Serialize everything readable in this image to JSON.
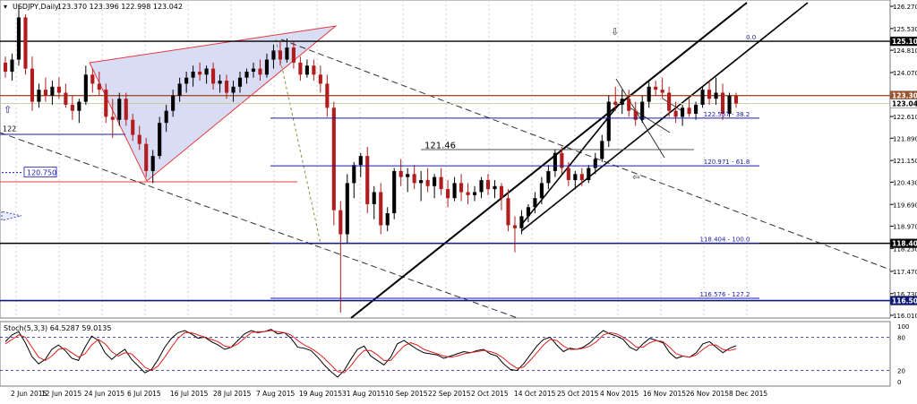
{
  "header": {
    "symbol": "USDJPY,Daily",
    "ohlc": "123.370 123.396 122.998 123.042"
  },
  "stoch_header": "Stoch(5,3,3) 64.5287 59.0135",
  "chart_data": [
    {
      "type": "candlestick",
      "title": "USDJPY,Daily",
      "ylim": [
        116.01,
        126.27
      ],
      "y_ticks": [
        "126.270",
        "125.530",
        "124.810",
        "124.070",
        "123.350",
        "122.610",
        "121.890",
        "121.150",
        "120.430",
        "119.690",
        "118.970",
        "118.230",
        "117.470",
        "116.730",
        "116.010"
      ],
      "x_ticks": [
        "2 Jun 2015",
        "12 Jun 2015",
        "24 Jun 2015",
        "6 Jul 2015",
        "16 Jul 2015",
        "28 Jul 2015",
        "7 Aug 2015",
        "19 Aug 2015",
        "31 Aug 2015",
        "10 Sep 2015",
        "22 Sep 2015",
        "2 Oct 2015",
        "14 Oct 2015",
        "25 Oct 2015",
        "4 Nov 2015",
        "16 Nov 2015",
        "26 Nov 2015",
        "8 Dec 2015"
      ],
      "colors": {
        "bull": "#000000",
        "bear": "#b11c1c",
        "wedge_fill": "#d9dcf5",
        "wedge_edge": "#e8393d",
        "fib": "#1a1aa8"
      },
      "price_markers": [
        {
          "value": 125.108,
          "label": "125.108",
          "style": "black"
        },
        {
          "value": 123.305,
          "label": "123.305",
          "style": "brown"
        },
        {
          "value": 123.042,
          "label": "123.042",
          "style": "white"
        },
        {
          "value": 118.4,
          "label": "118.400",
          "style": "black"
        },
        {
          "value": 116.5,
          "label": "116.500",
          "style": "navy"
        }
      ],
      "fib_levels": [
        {
          "label": "0.0",
          "value": 125.108
        },
        {
          "label": "122.557 - 38.2",
          "value": 122.557
        },
        {
          "label": "120.971 - 61.8",
          "value": 120.971
        },
        {
          "label": "118.404 - 100.0",
          "value": 118.404
        },
        {
          "label": "116.576 - 127.2",
          "value": 116.576
        }
      ],
      "annotations": [
        {
          "text": "121.46",
          "value": 121.46
        },
        {
          "text": "120.750",
          "value": 120.75
        },
        {
          "text": "122",
          "value": 122.0
        }
      ],
      "ohlc": [
        [
          124.4,
          124.6,
          123.9,
          124.1
        ],
        [
          124.1,
          124.7,
          123.8,
          124.5
        ],
        [
          124.5,
          126.3,
          124.3,
          125.9
        ],
        [
          125.9,
          126.0,
          124.0,
          124.2
        ],
        [
          124.2,
          124.6,
          122.8,
          123.1
        ],
        [
          123.1,
          123.7,
          122.9,
          123.5
        ],
        [
          123.5,
          123.9,
          123.1,
          123.3
        ],
        [
          123.3,
          123.8,
          123.0,
          123.6
        ],
        [
          123.6,
          123.9,
          123.2,
          123.4
        ],
        [
          123.4,
          123.7,
          122.9,
          123.0
        ],
        [
          123.0,
          123.3,
          122.5,
          122.8
        ],
        [
          122.8,
          123.2,
          122.4,
          123.1
        ],
        [
          123.1,
          124.3,
          123.0,
          124.0
        ],
        [
          124.0,
          124.2,
          123.4,
          123.7
        ],
        [
          123.7,
          124.1,
          123.3,
          123.5
        ],
        [
          123.5,
          123.7,
          122.4,
          122.6
        ],
        [
          122.6,
          123.2,
          121.9,
          122.5
        ],
        [
          122.5,
          123.4,
          122.3,
          123.2
        ],
        [
          123.2,
          123.4,
          122.3,
          122.5
        ],
        [
          122.5,
          122.7,
          121.8,
          122.0
        ],
        [
          122.0,
          122.3,
          121.5,
          121.7
        ],
        [
          121.7,
          121.9,
          120.6,
          120.8
        ],
        [
          120.8,
          121.5,
          120.4,
          121.3
        ],
        [
          121.3,
          122.6,
          121.2,
          122.4
        ],
        [
          122.4,
          123.0,
          122.1,
          122.8
        ],
        [
          122.8,
          123.5,
          122.6,
          123.3
        ],
        [
          123.3,
          123.9,
          123.1,
          123.7
        ],
        [
          123.7,
          124.1,
          123.4,
          123.9
        ],
        [
          123.9,
          124.3,
          123.6,
          124.1
        ],
        [
          124.1,
          124.4,
          123.8,
          124.0
        ],
        [
          124.0,
          124.3,
          123.7,
          124.2
        ],
        [
          124.2,
          124.4,
          123.5,
          123.7
        ],
        [
          123.7,
          124.0,
          123.4,
          123.8
        ],
        [
          123.8,
          124.0,
          123.2,
          123.4
        ],
        [
          123.4,
          123.8,
          123.1,
          123.6
        ],
        [
          123.6,
          124.1,
          123.4,
          123.9
        ],
        [
          123.9,
          124.2,
          123.7,
          124.1
        ],
        [
          124.1,
          124.4,
          123.9,
          124.2
        ],
        [
          124.2,
          124.5,
          123.8,
          124.0
        ],
        [
          124.0,
          124.7,
          123.9,
          124.5
        ],
        [
          124.5,
          125.0,
          124.2,
          124.8
        ],
        [
          124.8,
          125.1,
          124.3,
          124.5
        ],
        [
          124.5,
          125.2,
          124.4,
          124.9
        ],
        [
          124.9,
          125.1,
          124.2,
          124.4
        ],
        [
          124.4,
          124.6,
          123.8,
          124.0
        ],
        [
          124.0,
          124.5,
          123.9,
          124.3
        ],
        [
          124.3,
          124.5,
          123.8,
          124.0
        ],
        [
          124.0,
          124.3,
          123.4,
          123.7
        ],
        [
          123.7,
          124.0,
          122.6,
          122.9
        ],
        [
          122.9,
          123.1,
          119.0,
          119.5
        ],
        [
          119.5,
          119.8,
          116.1,
          118.7
        ],
        [
          118.7,
          120.7,
          118.4,
          120.4
        ],
        [
          120.4,
          121.1,
          119.9,
          121.0
        ],
        [
          121.0,
          121.4,
          120.6,
          121.3
        ],
        [
          121.3,
          121.6,
          119.4,
          119.7
        ],
        [
          119.7,
          120.3,
          119.2,
          120.1
        ],
        [
          120.1,
          120.4,
          118.7,
          119.0
        ],
        [
          119.0,
          119.6,
          118.8,
          119.4
        ],
        [
          119.4,
          120.9,
          119.2,
          120.8
        ],
        [
          120.8,
          121.2,
          120.3,
          120.6
        ],
        [
          120.6,
          120.9,
          120.1,
          120.7
        ],
        [
          120.7,
          121.0,
          120.2,
          120.4
        ],
        [
          120.4,
          120.8,
          119.8,
          120.5
        ],
        [
          120.5,
          120.9,
          120.1,
          120.3
        ],
        [
          120.3,
          120.7,
          119.9,
          120.6
        ],
        [
          120.6,
          120.9,
          120.0,
          120.2
        ],
        [
          120.2,
          120.5,
          119.6,
          119.9
        ],
        [
          119.9,
          120.6,
          119.8,
          120.4
        ],
        [
          120.4,
          120.7,
          119.8,
          120.1
        ],
        [
          120.1,
          120.4,
          119.7,
          120.0
        ],
        [
          120.0,
          120.3,
          119.8,
          120.1
        ],
        [
          120.1,
          120.6,
          119.9,
          120.5
        ],
        [
          120.5,
          120.7,
          120.0,
          120.2
        ],
        [
          120.2,
          120.5,
          119.9,
          120.3
        ],
        [
          120.3,
          120.4,
          119.5,
          119.9
        ],
        [
          119.9,
          120.2,
          118.8,
          119.0
        ],
        [
          119.0,
          119.3,
          118.1,
          118.9
        ],
        [
          118.9,
          119.5,
          118.7,
          119.3
        ],
        [
          119.3,
          119.7,
          119.1,
          119.6
        ],
        [
          119.6,
          120.1,
          119.4,
          119.9
        ],
        [
          119.9,
          120.6,
          119.7,
          120.4
        ],
        [
          120.4,
          121.0,
          120.2,
          120.8
        ],
        [
          120.8,
          121.5,
          120.6,
          121.4
        ],
        [
          121.4,
          121.6,
          120.7,
          120.9
        ],
        [
          120.9,
          121.1,
          120.3,
          120.5
        ],
        [
          120.5,
          120.8,
          120.2,
          120.7
        ],
        [
          120.7,
          120.9,
          120.3,
          120.5
        ],
        [
          120.5,
          121.0,
          120.4,
          120.9
        ],
        [
          120.9,
          121.4,
          120.7,
          121.2
        ],
        [
          121.2,
          122.0,
          121.1,
          121.8
        ],
        [
          121.8,
          123.3,
          121.6,
          123.1
        ],
        [
          123.1,
          123.6,
          122.8,
          123.0
        ],
        [
          123.0,
          123.5,
          122.7,
          123.2
        ],
        [
          123.2,
          123.5,
          122.6,
          122.8
        ],
        [
          122.8,
          123.1,
          122.3,
          122.5
        ],
        [
          122.5,
          123.3,
          122.4,
          123.1
        ],
        [
          123.1,
          123.8,
          122.9,
          123.6
        ],
        [
          123.6,
          123.8,
          123.3,
          123.5
        ],
        [
          123.5,
          123.9,
          123.2,
          123.4
        ],
        [
          123.4,
          123.6,
          122.6,
          122.8
        ],
        [
          122.8,
          123.1,
          122.4,
          122.6
        ],
        [
          122.6,
          123.0,
          122.3,
          122.9
        ],
        [
          122.9,
          123.2,
          122.6,
          122.7
        ],
        [
          122.7,
          123.1,
          122.5,
          123.0
        ],
        [
          123.0,
          123.6,
          122.9,
          123.5
        ],
        [
          123.5,
          123.8,
          123.0,
          123.2
        ],
        [
          123.2,
          123.9,
          123.0,
          123.4
        ],
        [
          123.4,
          123.7,
          122.5,
          122.7
        ],
        [
          122.7,
          123.4,
          122.6,
          123.3
        ],
        [
          123.3,
          123.4,
          122.9,
          123.042
        ]
      ]
    },
    {
      "type": "line",
      "title": "Stoch(5,3,3) 64.5287 59.0135",
      "ylim": [
        0,
        100
      ],
      "y_ticks": [
        "100",
        "80",
        "20",
        "0"
      ],
      "series": [
        {
          "name": "64.5287",
          "color": "#000000",
          "values": [
            72,
            84,
            90,
            70,
            45,
            32,
            40,
            58,
            66,
            56,
            42,
            38,
            62,
            82,
            74,
            52,
            40,
            50,
            58,
            40,
            28,
            16,
            22,
            40,
            62,
            78,
            88,
            92,
            86,
            78,
            80,
            72,
            66,
            58,
            62,
            74,
            86,
            92,
            88,
            90,
            94,
            86,
            88,
            78,
            62,
            60,
            56,
            44,
            30,
            18,
            8,
            20,
            40,
            58,
            64,
            46,
            38,
            30,
            44,
            68,
            74,
            66,
            58,
            52,
            50,
            48,
            42,
            46,
            50,
            54,
            52,
            56,
            58,
            50,
            46,
            32,
            22,
            20,
            32,
            48,
            64,
            76,
            80,
            66,
            54,
            60,
            58,
            62,
            70,
            82,
            92,
            86,
            82,
            76,
            62,
            56,
            68,
            78,
            74,
            70,
            52,
            42,
            46,
            44,
            52,
            68,
            72,
            62,
            52,
            60,
            64.5287
          ]
        },
        {
          "name": "59.0135",
          "color": "#e02020",
          "values": [
            68,
            76,
            84,
            80,
            62,
            44,
            38,
            46,
            58,
            60,
            52,
            44,
            50,
            66,
            76,
            68,
            54,
            46,
            52,
            50,
            38,
            26,
            20,
            28,
            44,
            62,
            78,
            88,
            88,
            84,
            80,
            76,
            72,
            64,
            62,
            68,
            78,
            88,
            90,
            90,
            92,
            90,
            88,
            84,
            74,
            66,
            60,
            52,
            42,
            30,
            18,
            16,
            28,
            44,
            56,
            56,
            48,
            38,
            38,
            52,
            64,
            70,
            66,
            58,
            54,
            50,
            46,
            44,
            46,
            50,
            52,
            54,
            56,
            54,
            50,
            42,
            32,
            24,
            26,
            38,
            52,
            66,
            76,
            74,
            64,
            58,
            58,
            60,
            64,
            72,
            84,
            88,
            86,
            80,
            72,
            62,
            62,
            70,
            74,
            72,
            62,
            50,
            46,
            44,
            48,
            58,
            66,
            66,
            58,
            56,
            59.0135
          ]
        }
      ],
      "reference_lines": [
        80,
        20
      ]
    }
  ]
}
